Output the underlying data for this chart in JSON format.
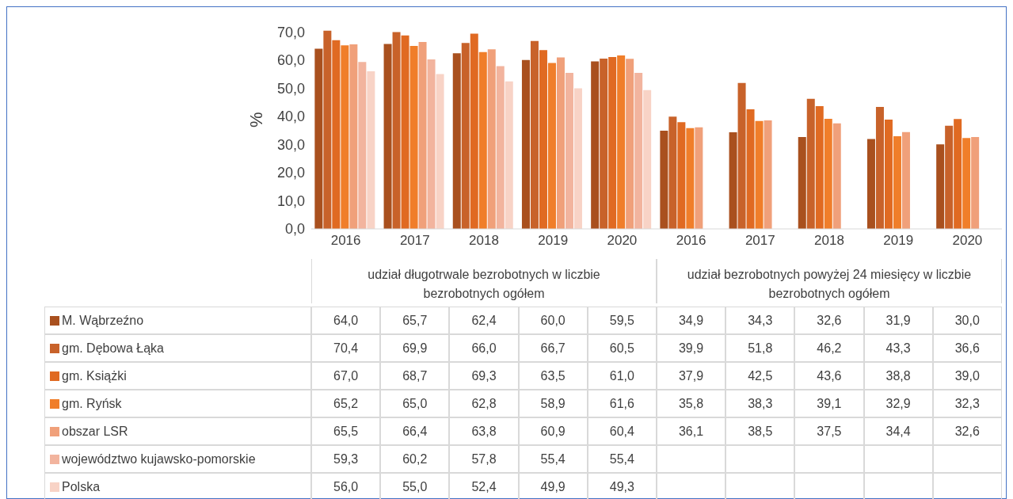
{
  "chart_data": {
    "type": "bar",
    "ylabel": "%",
    "categories": [
      "2016",
      "2017",
      "2018",
      "2019",
      "2020",
      "2016",
      "2017",
      "2018",
      "2019",
      "2020"
    ],
    "annotations": [
      "udział długotrwale bezrobotnych  w liczbie bezrobotnych ogółem",
      "udział bezrobotnych powyżej 24 miesięcy w liczbie bezrobotnych ogółem"
    ],
    "series": [
      {
        "name": "M. Wąbrzeźno",
        "color": "#a9501e",
        "values": [
          64.0,
          65.7,
          62.4,
          60.0,
          59.5,
          34.9,
          34.3,
          32.6,
          31.9,
          30.0
        ],
        "value_labels": [
          "64,0",
          "65,7",
          "62,4",
          "60,0",
          "59,5",
          "34,9",
          "34,3",
          "32,6",
          "31,9",
          "30,0"
        ]
      },
      {
        "name": "gm. Dębowa Łąka",
        "color": "#c8622a",
        "values": [
          70.4,
          69.9,
          66.0,
          66.7,
          60.5,
          39.9,
          51.8,
          46.2,
          43.3,
          36.6
        ],
        "value_labels": [
          "70,4",
          "69,9",
          "66,0",
          "66,7",
          "60,5",
          "39,9",
          "51,8",
          "46,2",
          "43,3",
          "36,6"
        ]
      },
      {
        "name": "gm. Książki",
        "color": "#e06a22",
        "values": [
          67.0,
          68.7,
          69.3,
          63.5,
          61.0,
          37.9,
          42.5,
          43.6,
          38.8,
          39.0
        ],
        "value_labels": [
          "67,0",
          "68,7",
          "69,3",
          "63,5",
          "61,0",
          "37,9",
          "42,5",
          "43,6",
          "38,8",
          "39,0"
        ]
      },
      {
        "name": "gm. Ryńsk",
        "color": "#f07e2a",
        "values": [
          65.2,
          65.0,
          62.8,
          58.9,
          61.6,
          35.8,
          38.3,
          39.1,
          32.9,
          32.3
        ],
        "value_labels": [
          "65,2",
          "65,0",
          "62,8",
          "58,9",
          "61,6",
          "35,8",
          "38,3",
          "39,1",
          "32,9",
          "32,3"
        ]
      },
      {
        "name": "obszar LSR",
        "color": "#f0a07a",
        "values": [
          65.5,
          66.4,
          63.8,
          60.9,
          60.4,
          36.1,
          38.5,
          37.5,
          34.4,
          32.6
        ],
        "value_labels": [
          "65,5",
          "66,4",
          "63,8",
          "60,9",
          "60,4",
          "36,1",
          "38,5",
          "37,5",
          "34,4",
          "32,6"
        ]
      },
      {
        "name": "województwo kujawsko-pomorskie",
        "color": "#f2b49e",
        "values": [
          59.3,
          60.2,
          57.8,
          55.4,
          55.4,
          null,
          null,
          null,
          null,
          null
        ],
        "value_labels": [
          "59,3",
          "60,2",
          "57,8",
          "55,4",
          "55,4",
          null,
          null,
          null,
          null,
          null
        ]
      },
      {
        "name": "Polska",
        "color": "#f8d3c6",
        "values": [
          56.0,
          55.0,
          52.4,
          49.9,
          49.3,
          null,
          null,
          null,
          null,
          null
        ],
        "value_labels": [
          "56,0",
          "55,0",
          "52,4",
          "49,9",
          "49,3",
          null,
          null,
          null,
          null,
          null
        ]
      }
    ],
    "ylim": [
      0,
      72
    ],
    "yticks": [
      {
        "value": 0,
        "label": "0,0"
      },
      {
        "value": 10,
        "label": "10,0"
      },
      {
        "value": 20,
        "label": "20,0"
      },
      {
        "value": 30,
        "label": "30,0"
      },
      {
        "value": 40,
        "label": "40,0"
      },
      {
        "value": 50,
        "label": "50,0"
      },
      {
        "value": 60,
        "label": "60,0"
      },
      {
        "value": 70,
        "label": "70,0"
      }
    ],
    "grid": false,
    "legend": "bottom"
  }
}
